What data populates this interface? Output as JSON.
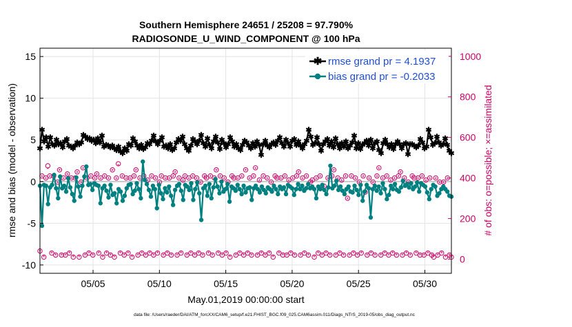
{
  "chart_data": {
    "type": "line",
    "title": "Southern Hemisphere 24651 / 25208 = 97.790%",
    "subtitle": "RADIOSONDE_U_WIND_COMPONENT @ 100 hPa",
    "xlabel": "May.01,2019 00:00:00 start",
    "ylabel": "rmse and bias (model - observation)",
    "y2label": "# of obs: o=possible; ×=assimilated",
    "footnote": "data file: /Users/raeder/DAI/ATM_forcXX/CAM6_setup/f.e21.FHIST_BGC.f09_025.CAM6assim.011/Diags_NTrS_2019-05/obs_diag_output.nc",
    "xlim": [
      1,
      32
    ],
    "ylim": [
      -11,
      16
    ],
    "y2lim": [
      -70,
      1040
    ],
    "xticks": [
      5,
      10,
      15,
      20,
      25,
      30
    ],
    "xtick_labels": [
      "05/05",
      "05/10",
      "05/15",
      "05/20",
      "05/25",
      "05/30"
    ],
    "yticks": [
      -10,
      -5,
      0,
      5,
      10,
      15
    ],
    "ytick_labels": [
      "-10",
      "-5",
      "0",
      "5",
      "10",
      "15"
    ],
    "y2ticks": [
      0,
      200,
      400,
      600,
      800,
      1000
    ],
    "y2tick_labels": [
      "0",
      "200",
      "400",
      "600",
      "800",
      "1000"
    ],
    "grid": true,
    "legend_position": "top-right",
    "colors": {
      "rmse": "#000000",
      "bias": "#008080",
      "obs": "#cc0066",
      "zero_line": "#bbbbbb",
      "legend_text": "#1f4fd0"
    },
    "series": [
      {
        "name": "rmse grand pr = 4.1937",
        "axis": "left",
        "values": [
          4.0,
          6.2,
          4.8,
          5.3,
          4.2,
          5.3,
          4.5,
          4.3,
          5.0,
          4.5,
          4.6,
          4.1,
          4.8,
          5.1,
          4.3,
          4.2,
          4.0,
          4.3,
          4.7,
          4.5,
          4.7,
          5.6,
          5.4,
          5.1,
          5.2,
          4.9,
          5.0,
          4.6,
          5.2,
          4.7,
          5.5,
          4.2,
          4.4,
          4.3,
          4.1,
          4.3,
          4.0,
          3.8,
          4.2,
          3.6,
          3.4,
          4.0,
          3.7,
          4.5,
          4.3,
          5.2,
          4.8,
          4.3,
          4.0,
          4.4,
          3.9,
          4.1,
          4.6,
          4.5,
          4.9,
          5.5,
          4.8,
          4.5,
          4.9,
          5.3,
          4.2,
          4.3,
          4.0,
          4.5,
          3.8,
          4.0,
          4.7,
          5.1,
          4.9,
          5.4,
          4.5,
          4.0,
          3.7,
          4.3,
          5.1,
          4.8,
          4.5,
          4.9,
          5.6,
          4.6,
          4.2,
          5.2,
          4.4,
          4.0,
          4.8,
          5.4,
          4.7,
          3.9,
          5.0,
          4.6,
          4.1,
          4.5,
          5.3,
          4.8,
          4.2,
          4.5,
          4.0,
          3.8,
          4.4,
          4.9,
          4.7,
          4.3,
          4.0,
          4.6,
          4.2,
          4.8,
          4.4,
          3.2,
          4.5,
          4.9,
          4.3,
          4.1,
          4.5,
          4.7,
          4.4,
          4.9,
          5.3,
          4.6,
          4.2,
          5.0,
          4.6,
          4.2,
          4.9,
          5.1,
          4.4,
          4.8,
          4.3,
          4.0,
          4.5,
          4.9,
          6.2,
          5.4,
          4.4,
          4.6,
          5.3,
          4.5,
          3.7,
          4.5,
          4.8,
          5.1,
          4.3,
          4.8,
          4.1,
          5.2,
          4.5,
          4.0,
          4.6,
          4.2,
          4.8,
          4.0,
          4.3,
          4.7,
          5.5,
          4.0,
          4.6,
          3.9,
          4.4,
          4.6,
          4.9,
          4.3,
          5.0,
          4.0,
          4.6,
          4.8,
          3.8,
          3.4,
          4.6,
          5.0,
          4.5,
          4.1,
          4.5,
          3.9,
          4.5,
          4.8,
          4.5,
          4.0,
          4.5,
          4.6,
          3.3,
          4.5,
          4.5,
          4.3,
          4.1,
          4.3,
          5.1,
          4.7,
          4.0,
          4.2,
          6.2,
          5.3,
          4.4,
          4.6,
          5.4,
          4.7,
          4.3,
          4.5,
          5.2,
          4.4,
          3.7,
          3.4
        ]
      },
      {
        "name": "bias grand pr = -0.2033",
        "axis": "left",
        "values": [
          -0.5,
          -5.3,
          -0.4,
          -0.5,
          -2.7,
          -0.7,
          -0.4,
          0.8,
          -0.8,
          -2.0,
          0.6,
          -0.8,
          -0.5,
          -1.2,
          0.4,
          -0.7,
          -1.5,
          -2.3,
          0.5,
          -0.6,
          -1.8,
          -0.5,
          0.6,
          1.8,
          -0.4,
          -0.3,
          -1.0,
          -0.2,
          -0.4,
          -0.5,
          -2.6,
          -0.8,
          -0.5,
          -1.1,
          -1.9,
          -0.4,
          -1.6,
          -1.4,
          -2.6,
          -0.9,
          -1.2,
          -2.3,
          -1.7,
          -0.8,
          -0.4,
          -0.3,
          -1.5,
          -1.1,
          -0.2,
          -0.9,
          -2.0,
          2.4,
          0.2,
          -0.3,
          -1.0,
          -1.8,
          -0.5,
          -0.9,
          -3.2,
          -0.4,
          -1.4,
          -2.1,
          -0.8,
          -1.3,
          -0.6,
          -1.7,
          -2.8,
          -1.0,
          -0.5,
          -0.3,
          -1.1,
          -2.2,
          -0.4,
          -0.6,
          -1.0,
          -0.2,
          -2.2,
          -0.9,
          -0.1,
          -1.4,
          -4.6,
          -0.8,
          -0.5,
          -1.7,
          -0.3,
          -2.0,
          -0.7,
          0.3,
          -0.6,
          -1.4,
          0.0,
          -1.2,
          -0.9,
          -0.3,
          -2.4,
          -0.6,
          -0.8,
          -1.1,
          -0.4,
          -0.9,
          -1.5,
          -0.5,
          -1.3,
          -0.8,
          -0.7,
          -2.2,
          -0.8,
          -0.5,
          -0.9,
          -1.3,
          -0.6,
          -1.0,
          -1.4,
          -0.7,
          -0.9,
          -1.2,
          -0.5,
          -0.9,
          -1.5,
          -0.6,
          -0.9,
          -0.7,
          -1.5,
          -0.4,
          -0.6,
          -0.8,
          -1.6,
          -0.9,
          -0.3,
          -0.9,
          -0.5,
          -1.1,
          -0.8,
          -0.3,
          -0.8,
          -0.6,
          -0.9,
          -2.0,
          -0.6,
          -0.9,
          -0.4,
          -1.0,
          -1.5,
          -0.7,
          1.9,
          -0.8,
          -0.5,
          0.1,
          -1.0,
          -0.6,
          -1.1,
          -1.5,
          -0.9,
          -0.6,
          -1.2,
          -1.3,
          -0.5,
          -1.0,
          -1.6,
          -0.4,
          -2.3,
          -1.2,
          -0.4,
          -0.8,
          -4.3,
          -0.9,
          -0.5,
          -1.1,
          -0.6,
          -1.4,
          -0.2,
          -0.9,
          -2.1,
          -1.6,
          -0.5,
          -0.9,
          -0.3,
          -1.0,
          -1.2,
          -0.7,
          0.1,
          -0.5,
          -0.3,
          -0.7,
          -0.2,
          -0.9,
          -0.6,
          -0.1,
          -1.2,
          -0.2,
          -0.4,
          -0.6,
          -1.3,
          -2.1,
          -0.9,
          -0.4,
          -0.6,
          -1.7,
          -1.4,
          -0.9,
          -0.6,
          -0.9,
          -1.2,
          -1.7,
          -1.8
        ]
      },
      {
        "name": "# of obs possible",
        "axis": "right",
        "marker": "o",
        "values": [
          40,
          410,
          10,
          400,
          460,
          410,
          30,
          410,
          20,
          380,
          440,
          20,
          400,
          20,
          420,
          30,
          400,
          10,
          400,
          430,
          10,
          380,
          450,
          20,
          400,
          30,
          410,
          20,
          400,
          420,
          30,
          400,
          10,
          410,
          30,
          400,
          20,
          440,
          10,
          400,
          470,
          30,
          410,
          20,
          400,
          30,
          400,
          10,
          410,
          440,
          20,
          400,
          30,
          410,
          20,
          390,
          30,
          410,
          20,
          400,
          30,
          380,
          410,
          20,
          400,
          30,
          400,
          20,
          410,
          430,
          20,
          400,
          30,
          390,
          410,
          20,
          400,
          30,
          410,
          20,
          400,
          30,
          380,
          20,
          410,
          400,
          30,
          410,
          20,
          400,
          440,
          30,
          410,
          20,
          400,
          30,
          380,
          10,
          410,
          400,
          20,
          400,
          30,
          410,
          20,
          440,
          30,
          400,
          20,
          410,
          450,
          20,
          390,
          30,
          410,
          20,
          400,
          30,
          380,
          10,
          410,
          400,
          30,
          400,
          20,
          410,
          20,
          390,
          30,
          400,
          20,
          410,
          430,
          20,
          400,
          30,
          410,
          20,
          380,
          390,
          10,
          400,
          30,
          410,
          20,
          360,
          30,
          400,
          20,
          410,
          440,
          20,
          400,
          30,
          390,
          20,
          410,
          300,
          20,
          410,
          30,
          400,
          20,
          380,
          30,
          410,
          330,
          20,
          400,
          30,
          380,
          20,
          410,
          450,
          20,
          400,
          30,
          410,
          20,
          390,
          30,
          400,
          20,
          410,
          430,
          20,
          400,
          30,
          380,
          20,
          410,
          400,
          30,
          400,
          20,
          410,
          20,
          390,
          30,
          400,
          20,
          10,
          400,
          20,
          380,
          30,
          380,
          10,
          400,
          20,
          10
        ]
      },
      {
        "name": "# of obs assimilated",
        "axis": "right",
        "marker": "*",
        "values": [
          39,
          405,
          9,
          395,
          445,
          405,
          29,
          405,
          19,
          375,
          435,
          19,
          395,
          19,
          415,
          29,
          395,
          9,
          395,
          425,
          9,
          375,
          445,
          19,
          395,
          29,
          405,
          19,
          395,
          415,
          29,
          395,
          9,
          405,
          29,
          395,
          19,
          435,
          9,
          395,
          460,
          29,
          405,
          19,
          395,
          29,
          395,
          9,
          405,
          435,
          19,
          395,
          29,
          405,
          19,
          385,
          29,
          405,
          19,
          395,
          29,
          375,
          405,
          19,
          395,
          29,
          395,
          19,
          405,
          425,
          19,
          395,
          29,
          385,
          405,
          19,
          395,
          29,
          405,
          19,
          395,
          29,
          375,
          19,
          405,
          395,
          29,
          405,
          19,
          395,
          435,
          29,
          405,
          19,
          395,
          29,
          375,
          9,
          405,
          395,
          19,
          395,
          29,
          405,
          19,
          435,
          29,
          395,
          19,
          405,
          445,
          19,
          385,
          29,
          405,
          19,
          395,
          29,
          375,
          9,
          405,
          395,
          29,
          395,
          19,
          405,
          19,
          385,
          29,
          395,
          19,
          405,
          425,
          19,
          395,
          29,
          405,
          19,
          375,
          385,
          9,
          395,
          29,
          405,
          19,
          355,
          29,
          395,
          19,
          405,
          435,
          19,
          395,
          29,
          385,
          19,
          405,
          295,
          19,
          405,
          29,
          395,
          19,
          375,
          29,
          405,
          325,
          19,
          395,
          29,
          375,
          19,
          405,
          445,
          19,
          395,
          29,
          405,
          19,
          385,
          29,
          395,
          19,
          405,
          425,
          19,
          395,
          29,
          375,
          19,
          405,
          395,
          29,
          395,
          19,
          405,
          19,
          385,
          29,
          395,
          19,
          9,
          395,
          19,
          375,
          29,
          375,
          9,
          395,
          19,
          9
        ]
      }
    ]
  }
}
